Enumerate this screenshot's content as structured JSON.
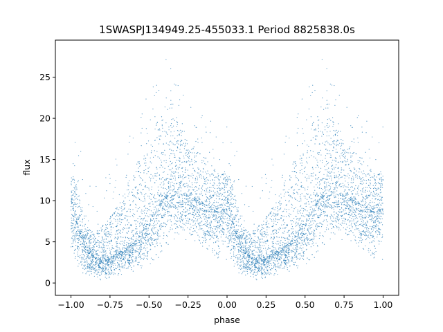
{
  "chart_data": {
    "type": "scatter",
    "title": "1SWASPJ134949.25-455033.1 Period 8825838.0s",
    "xlabel": "phase",
    "ylabel": "flux",
    "xlim": [
      -1.1,
      1.1
    ],
    "ylim": [
      -1.5,
      29.5
    ],
    "xticks": [
      -1.0,
      -0.75,
      -0.5,
      -0.25,
      0.0,
      0.25,
      0.5,
      0.75,
      1.0
    ],
    "xtick_labels": [
      "−1.00",
      "−0.75",
      "−0.50",
      "−0.25",
      "0.00",
      "0.25",
      "0.50",
      "0.75",
      "1.00"
    ],
    "yticks": [
      0,
      5,
      10,
      15,
      20,
      25
    ],
    "ytick_labels": [
      "0",
      "5",
      "10",
      "15",
      "20",
      "25"
    ],
    "grid": false,
    "marker_color": "#1f77b4",
    "envelope": {
      "phase": [
        0.0,
        0.05,
        0.1,
        0.15,
        0.2,
        0.25,
        0.3,
        0.35,
        0.4,
        0.45,
        0.5,
        0.55,
        0.6,
        0.65,
        0.7,
        0.75,
        0.8,
        0.85,
        0.9,
        0.95,
        1.0
      ],
      "median": [
        10.0,
        6.5,
        4.0,
        3.0,
        2.8,
        3.0,
        3.5,
        4.2,
        4.8,
        6.0,
        7.5,
        9.0,
        10.5,
        11.5,
        11.0,
        10.5,
        10.0,
        9.5,
        9.0,
        8.5,
        9.0
      ],
      "upper": [
        14.0,
        11.0,
        7.0,
        6.0,
        7.0,
        8.0,
        9.5,
        11.5,
        13.5,
        15.0,
        17.5,
        19.5,
        21.5,
        22.0,
        19.0,
        17.0,
        16.0,
        15.5,
        14.5,
        13.0,
        14.0
      ],
      "lower": [
        2.5,
        1.0,
        0.5,
        0.3,
        0.3,
        0.5,
        0.8,
        1.0,
        1.2,
        1.5,
        2.0,
        2.5,
        3.5,
        5.0,
        5.5,
        5.0,
        4.5,
        4.0,
        3.0,
        2.5,
        2.5
      ]
    }
  }
}
